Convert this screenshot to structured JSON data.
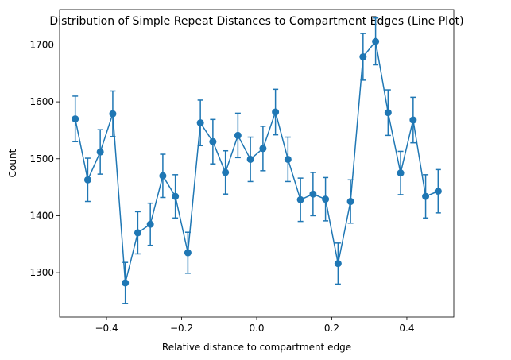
{
  "chart_data": {
    "type": "line",
    "title": "Distribution of Simple Repeat Distances to Compartment Edges (Line Plot)",
    "xlabel": "Relative distance to compartment edge",
    "ylabel": "Count",
    "xlim": [
      -0.525,
      0.525
    ],
    "ylim": [
      1222,
      1762
    ],
    "xticks": [
      -0.4,
      -0.2,
      0.0,
      0.2,
      0.4
    ],
    "xtick_labels": [
      "−0.4",
      "−0.2",
      "0.0",
      "0.2",
      "0.4"
    ],
    "yticks": [
      1300,
      1400,
      1500,
      1600,
      1700
    ],
    "ytick_labels": [
      "1300",
      "1400",
      "1500",
      "1600",
      "1700"
    ],
    "grid": false,
    "colors": {
      "series": "#1f77b4"
    },
    "series": [
      {
        "x": [
          -0.4833,
          -0.45,
          -0.4167,
          -0.3833,
          -0.35,
          -0.3167,
          -0.2833,
          -0.25,
          -0.2167,
          -0.1833,
          -0.15,
          -0.1167,
          -0.0833,
          -0.05,
          -0.0167,
          0.0167,
          0.05,
          0.0833,
          0.1167,
          0.15,
          0.1833,
          0.2167,
          0.25,
          0.2833,
          0.3167,
          0.35,
          0.3833,
          0.4167,
          0.45,
          0.4833
        ],
        "values": [
          1570,
          1463,
          1512,
          1579,
          1282,
          1370,
          1385,
          1470,
          1434,
          1335,
          1563,
          1530,
          1476,
          1541,
          1499,
          1518,
          1582,
          1499,
          1428,
          1438,
          1429,
          1316,
          1425,
          1679,
          1706,
          1581,
          1475,
          1568,
          1434,
          1443
        ],
        "errors": [
          40,
          38,
          39,
          40,
          36,
          37,
          37,
          38,
          38,
          36,
          40,
          39,
          38,
          39,
          39,
          39,
          40,
          39,
          38,
          38,
          38,
          36,
          38,
          41,
          41,
          40,
          38,
          40,
          38,
          38
        ]
      }
    ]
  }
}
